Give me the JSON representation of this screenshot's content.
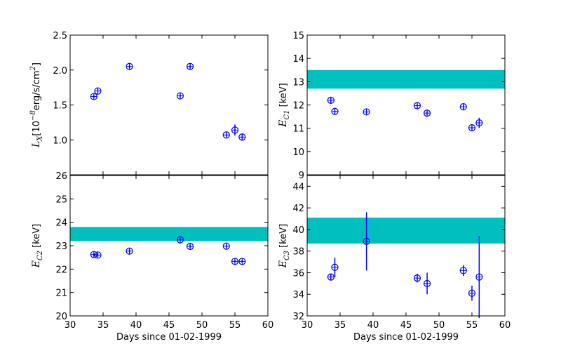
{
  "colors": {
    "marker": "#0000ff",
    "band": "#00bfbf",
    "axis": "#000000"
  },
  "chart_data": [
    {
      "type": "scatter",
      "panel": "top-left",
      "ylabel": {
        "main": "L",
        "sub": "X",
        "rest": "[10",
        "exp": "−8",
        "units": "erg/s/cm",
        "units_exp": "2",
        "close": "]"
      },
      "xlabel": "",
      "xlim": [
        30,
        60
      ],
      "ylim": [
        0.5,
        2.5
      ],
      "xticks": [
        30,
        35,
        40,
        45,
        50,
        55,
        60
      ],
      "yticks": [
        1.0,
        1.5,
        2.0,
        2.5
      ],
      "ytick_labels": [
        "1.0",
        "1.5",
        "2.0",
        "2.5"
      ],
      "band": null,
      "points": [
        {
          "x": 33.6,
          "y": 1.62,
          "yerr": 0.03
        },
        {
          "x": 34.2,
          "y": 1.7,
          "yerr": 0.03
        },
        {
          "x": 39.0,
          "y": 2.05,
          "yerr": 0.03
        },
        {
          "x": 46.7,
          "y": 1.63,
          "yerr": 0.03
        },
        {
          "x": 48.2,
          "y": 2.05,
          "yerr": 0.03
        },
        {
          "x": 53.7,
          "y": 1.07,
          "yerr": 0.03
        },
        {
          "x": 55.0,
          "y": 1.14,
          "yerr": 0.08
        },
        {
          "x": 56.1,
          "y": 1.04,
          "yerr": 0.05
        }
      ]
    },
    {
      "type": "scatter",
      "panel": "top-right",
      "ylabel": {
        "main": "E",
        "sub": "C1",
        "rest": " [keV]"
      },
      "xlabel": "",
      "xlim": [
        30,
        60
      ],
      "ylim": [
        9,
        15
      ],
      "xticks": [
        30,
        35,
        40,
        45,
        50,
        55,
        60
      ],
      "yticks": [
        9,
        10,
        11,
        12,
        13,
        14,
        15
      ],
      "ytick_labels": [
        "9",
        "10",
        "11",
        "12",
        "13",
        "14",
        "15"
      ],
      "band": [
        12.7,
        13.5
      ],
      "points": [
        {
          "x": 33.6,
          "y": 12.2,
          "yerr": 0.1
        },
        {
          "x": 34.2,
          "y": 11.72,
          "yerr": 0.1
        },
        {
          "x": 39.0,
          "y": 11.7,
          "yerr": 0.1
        },
        {
          "x": 46.7,
          "y": 11.97,
          "yerr": 0.1
        },
        {
          "x": 48.2,
          "y": 11.65,
          "yerr": 0.1
        },
        {
          "x": 53.7,
          "y": 11.92,
          "yerr": 0.1
        },
        {
          "x": 55.0,
          "y": 11.02,
          "yerr": 0.1
        },
        {
          "x": 56.1,
          "y": 11.23,
          "yerr": 0.22
        }
      ]
    },
    {
      "type": "scatter",
      "panel": "bottom-left",
      "ylabel": {
        "main": "E",
        "sub": "C2",
        "rest": " [keV]"
      },
      "xlabel": "Days since 01-02-1999",
      "xlim": [
        30,
        60
      ],
      "ylim": [
        20,
        26
      ],
      "xticks": [
        30,
        35,
        40,
        45,
        50,
        55,
        60
      ],
      "yticks": [
        20,
        21,
        22,
        23,
        24,
        25,
        26
      ],
      "ytick_labels": [
        "20",
        "21",
        "22",
        "23",
        "24",
        "25",
        "26"
      ],
      "xtick_labels": [
        "30",
        "35",
        "40",
        "45",
        "50",
        "55",
        "60"
      ],
      "band": [
        23.2,
        23.8
      ],
      "points": [
        {
          "x": 33.6,
          "y": 22.62,
          "yerr": 0.08
        },
        {
          "x": 34.2,
          "y": 22.6,
          "yerr": 0.08
        },
        {
          "x": 39.0,
          "y": 22.77,
          "yerr": 0.1
        },
        {
          "x": 46.7,
          "y": 23.25,
          "yerr": 0.08
        },
        {
          "x": 48.2,
          "y": 22.97,
          "yerr": 0.08
        },
        {
          "x": 53.7,
          "y": 22.98,
          "yerr": 0.08
        },
        {
          "x": 55.0,
          "y": 22.33,
          "yerr": 0.08
        },
        {
          "x": 56.1,
          "y": 22.33,
          "yerr": 0.08
        }
      ]
    },
    {
      "type": "scatter",
      "panel": "bottom-right",
      "ylabel": {
        "main": "E",
        "sub": "C3",
        "rest": " [keV]"
      },
      "xlabel": "Days since 01-02-1999",
      "xlim": [
        30,
        60
      ],
      "ylim": [
        32,
        45
      ],
      "xticks": [
        30,
        35,
        40,
        45,
        50,
        55,
        60
      ],
      "yticks": [
        32,
        34,
        36,
        38,
        40,
        42,
        44
      ],
      "ytick_labels": [
        "32",
        "34",
        "36",
        "38",
        "40",
        "42",
        "44"
      ],
      "xtick_labels": [
        "30",
        "35",
        "40",
        "45",
        "50",
        "55",
        "60"
      ],
      "band": [
        38.7,
        41.1
      ],
      "points": [
        {
          "x": 33.6,
          "y": 35.6,
          "yerr": 0.3
        },
        {
          "x": 34.2,
          "y": 36.5,
          "yerr": 0.9
        },
        {
          "x": 39.0,
          "y": 38.9,
          "yerr": 2.7
        },
        {
          "x": 46.7,
          "y": 35.5,
          "yerr": 0.4
        },
        {
          "x": 48.2,
          "y": 35.0,
          "yerr": 1.0
        },
        {
          "x": 53.7,
          "y": 36.2,
          "yerr": 0.5
        },
        {
          "x": 55.0,
          "y": 34.1,
          "yerr": 0.7
        },
        {
          "x": 56.1,
          "y": 35.6,
          "yerr": 3.8
        }
      ]
    }
  ]
}
